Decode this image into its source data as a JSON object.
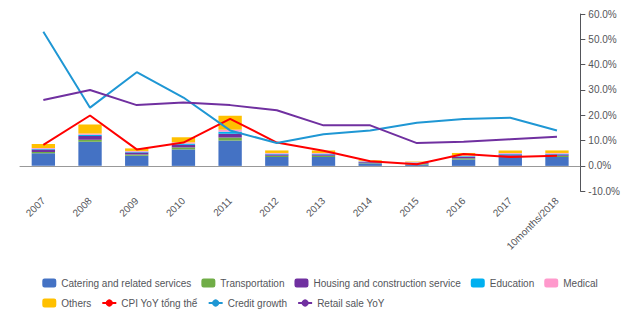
{
  "chart_data": {
    "type": "bar",
    "stacked": true,
    "grid": false,
    "legend": "bottom",
    "categories": [
      "2007",
      "2008",
      "2009",
      "2010",
      "2011",
      "2012",
      "2013",
      "2014",
      "2015",
      "2016",
      "2017",
      "10months/2018"
    ],
    "ylim": [
      -0.1,
      0.6
    ],
    "yticks": [
      {
        "value": -0.1,
        "label": "-10.0%"
      },
      {
        "value": 0.0,
        "label": "0.0%"
      },
      {
        "value": 0.1,
        "label": "10.0%"
      },
      {
        "value": 0.2,
        "label": "20.0%"
      },
      {
        "value": 0.3,
        "label": "30.0%"
      },
      {
        "value": 0.4,
        "label": "40.0%"
      },
      {
        "value": 0.5,
        "label": "50.0%"
      },
      {
        "value": 0.6,
        "label": "60.0%"
      }
    ],
    "series": [
      {
        "name": "Catering and related services",
        "type": "bar",
        "color": "#4472C4",
        "values": [
          0.05,
          0.095,
          0.04,
          0.065,
          0.1,
          0.035,
          0.035,
          0.01,
          0.005,
          0.025,
          0.035,
          0.035
        ]
      },
      {
        "name": "Transportation",
        "type": "bar",
        "color": "#70AD47",
        "values": [
          0.005,
          0.008,
          0.005,
          0.008,
          0.012,
          0.005,
          0.005,
          0.002,
          0.003,
          0.005,
          0.005,
          0.005
        ]
      },
      {
        "name": "Housing and construction service",
        "type": "bar",
        "color": "#7030A0",
        "values": [
          0.01,
          0.015,
          0.008,
          0.01,
          0.015,
          0.005,
          0.005,
          0.003,
          0.003,
          0.005,
          0.005,
          0.005
        ]
      },
      {
        "name": "Education",
        "type": "bar",
        "color": "#00B0F0",
        "values": [
          0.003,
          0.005,
          0.003,
          0.005,
          0.008,
          0.003,
          0.003,
          0.002,
          0.002,
          0.003,
          0.003,
          0.003
        ]
      },
      {
        "name": "Medical",
        "type": "bar",
        "color": "#FF99CC",
        "values": [
          0.003,
          0.005,
          0.003,
          0.005,
          0.008,
          0.003,
          0.003,
          0.002,
          0.002,
          0.003,
          0.003,
          0.003
        ]
      },
      {
        "name": "Others",
        "type": "bar",
        "color": "#FFC000",
        "values": [
          0.015,
          0.035,
          0.01,
          0.02,
          0.055,
          0.01,
          0.01,
          0.003,
          0.002,
          0.01,
          0.01,
          0.01
        ]
      },
      {
        "name": "CPI YoY tổng thể",
        "type": "line",
        "color": "#FF0000",
        "values": [
          0.083,
          0.199,
          0.065,
          0.092,
          0.186,
          0.092,
          0.06,
          0.018,
          0.006,
          0.047,
          0.035,
          0.04
        ]
      },
      {
        "name": "Credit growth",
        "type": "line",
        "color": "#1F97D4",
        "values": [
          0.53,
          0.23,
          0.37,
          0.27,
          0.14,
          0.09,
          0.125,
          0.14,
          0.17,
          0.185,
          0.19,
          0.14
        ]
      },
      {
        "name": "Retail sale YoY",
        "type": "line",
        "color": "#7030A0",
        "values": [
          0.26,
          0.3,
          0.24,
          0.25,
          0.24,
          0.22,
          0.16,
          0.16,
          0.09,
          0.095,
          0.105,
          0.115
        ]
      }
    ]
  }
}
